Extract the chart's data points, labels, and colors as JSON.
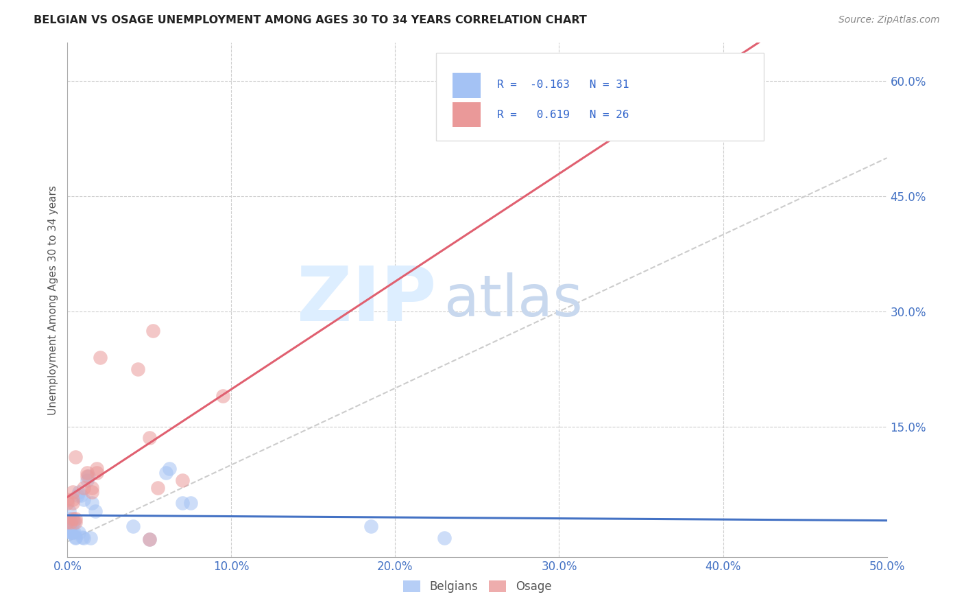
{
  "title": "BELGIAN VS OSAGE UNEMPLOYMENT AMONG AGES 30 TO 34 YEARS CORRELATION CHART",
  "source": "Source: ZipAtlas.com",
  "ylabel": "Unemployment Among Ages 30 to 34 years",
  "xlim": [
    0.0,
    0.5
  ],
  "ylim": [
    -0.02,
    0.65
  ],
  "xticks": [
    0.0,
    0.1,
    0.2,
    0.3,
    0.4,
    0.5
  ],
  "yticks": [
    0.0,
    0.15,
    0.3,
    0.45,
    0.6
  ],
  "ytick_labels": [
    "",
    "15.0%",
    "30.0%",
    "45.0%",
    "60.0%"
  ],
  "xtick_labels": [
    "0.0%",
    "10.0%",
    "20.0%",
    "30.0%",
    "40.0%",
    "50.0%"
  ],
  "belgian_color": "#a4c2f4",
  "osage_color": "#ea9999",
  "belgian_line_color": "#4472c4",
  "osage_line_color": "#e06070",
  "belgian_r": -0.163,
  "belgian_n": 31,
  "osage_r": 0.619,
  "osage_n": 26,
  "watermark_zip": "ZIP",
  "watermark_atlas": "atlas",
  "watermark_color": "#ddeeff",
  "belgians_x": [
    0.0,
    0.001,
    0.001,
    0.002,
    0.002,
    0.003,
    0.003,
    0.004,
    0.004,
    0.005,
    0.005,
    0.006,
    0.007,
    0.007,
    0.008,
    0.009,
    0.01,
    0.01,
    0.012,
    0.013,
    0.014,
    0.015,
    0.017,
    0.04,
    0.05,
    0.06,
    0.062,
    0.07,
    0.075,
    0.185,
    0.23
  ],
  "belgians_y": [
    0.015,
    0.03,
    0.04,
    0.012,
    0.012,
    0.025,
    0.012,
    0.012,
    0.025,
    0.006,
    0.005,
    0.06,
    0.065,
    0.012,
    0.06,
    0.006,
    0.005,
    0.055,
    0.08,
    0.085,
    0.005,
    0.05,
    0.04,
    0.02,
    0.003,
    0.09,
    0.095,
    0.05,
    0.05,
    0.02,
    0.005
  ],
  "osage_x": [
    0.0,
    0.0,
    0.0,
    0.002,
    0.003,
    0.003,
    0.003,
    0.003,
    0.005,
    0.005,
    0.005,
    0.01,
    0.012,
    0.012,
    0.015,
    0.015,
    0.018,
    0.018,
    0.02,
    0.043,
    0.05,
    0.05,
    0.052,
    0.055,
    0.07,
    0.095
  ],
  "osage_y": [
    0.025,
    0.05,
    0.055,
    0.025,
    0.03,
    0.05,
    0.055,
    0.065,
    0.025,
    0.03,
    0.11,
    0.07,
    0.085,
    0.09,
    0.07,
    0.065,
    0.09,
    0.095,
    0.24,
    0.225,
    0.003,
    0.135,
    0.275,
    0.07,
    0.08,
    0.19
  ]
}
